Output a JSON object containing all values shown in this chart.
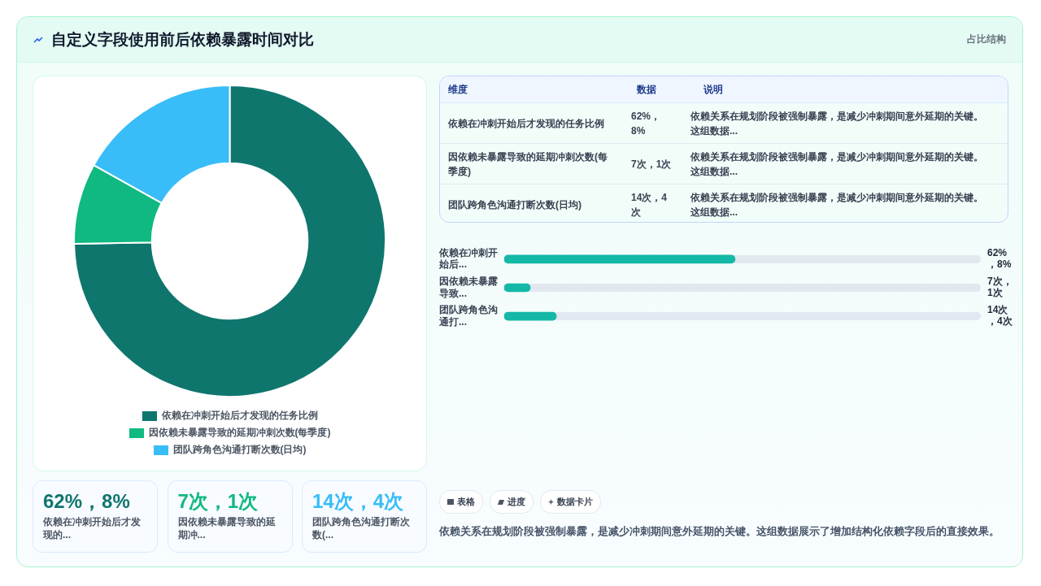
{
  "chart_data": [
    {
      "type": "donut",
      "title": "自定义字段使用前后依赖暴露时间对比",
      "annotations": [
        "占比结构"
      ],
      "categories": [
        "依赖在冲刺开始后才发现的任务比例",
        "因依赖未暴露导致的延期冲刺次数(每季度)",
        "团队跨角色沟通打断次数(日均)"
      ],
      "values": [
        74.7,
        8.4,
        16.9
      ],
      "colors": [
        "#0f766e",
        "#10b981",
        "#38bdf8"
      ],
      "legend": "bottom"
    },
    {
      "type": "bar",
      "orientation": "horizontal",
      "xlim": [
        0,
        128
      ],
      "tick_labels": "y",
      "categories": [
        "依赖在冲刺开始后...",
        "因依赖未暴露导致...",
        "团队跨角色沟通打..."
      ],
      "values": [
        62,
        7,
        14
      ],
      "color": "#14b8a6",
      "value_labels": [
        "62%，8%",
        "7次，1次",
        "14次，4次"
      ]
    },
    {
      "type": "other",
      "annotations": [
        "维度",
        "数据",
        "说明",
        "依赖在冲刺开始后才发现的任务比例",
        "62%，8%",
        "依赖关系在规划阶段被强制暴露，是减少冲刺期间意外延期的关键。这组数据...",
        "因依赖未暴露导致的延期冲刺次数(每季度)",
        "7次，1次",
        "依赖关系在规划阶段被强制暴露，是减少冲刺期间意外延期的关键。这组数据...",
        "团队跨角色沟通打断次数(日均)",
        "14次，4次",
        "依赖关系在规划阶段被强制暴露，是减少冲刺期间意外延期的关键。这组数据..."
      ]
    },
    {
      "type": "other",
      "annotations": [
        "62%，8%",
        "依赖在冲刺开始后才发现的...",
        "7次，1次",
        "因依赖未暴露导致的延期冲...",
        "14次，4次",
        "团队跨角色沟通打断次数(..."
      ],
      "colors": [
        "#0f766e",
        "#10b981",
        "#38bdf8"
      ]
    },
    {
      "type": "other",
      "annotations": [
        "表格",
        "进度",
        "数据卡片",
        "依赖关系在规划阶段被强制暴露，是减少冲刺期间意外延期的关键。这组数据展示了增加结构化依赖字段后的直接效果。"
      ]
    }
  ]
}
